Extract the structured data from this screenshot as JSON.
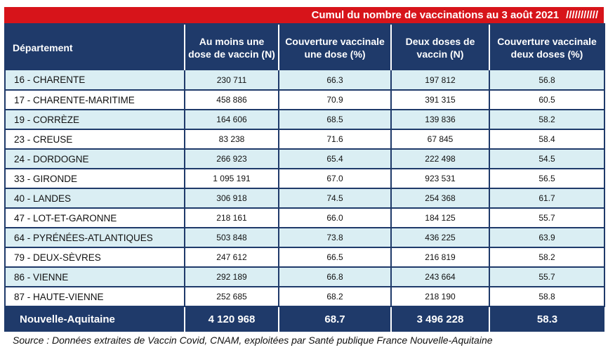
{
  "title": "Cumul du nombre de vaccinations au 3 août 2021",
  "title_decoration": "///////////",
  "table": {
    "headers": [
      "Département",
      "Au moins une dose de vaccin (N)",
      "Couverture vaccinale une dose (%)",
      "Deux doses de vaccin (N)",
      "Couverture vaccinale deux doses (%)"
    ],
    "rows": [
      [
        "16 - CHARENTE",
        "230 711",
        "66.3",
        "197 812",
        "56.8"
      ],
      [
        "17 - CHARENTE-MARITIME",
        "458 886",
        "70.9",
        "391 315",
        "60.5"
      ],
      [
        "19 - CORRÈZE",
        "164 606",
        "68.5",
        "139 836",
        "58.2"
      ],
      [
        "23 - CREUSE",
        "83 238",
        "71.6",
        "67 845",
        "58.4"
      ],
      [
        "24 - DORDOGNE",
        "266 923",
        "65.4",
        "222 498",
        "54.5"
      ],
      [
        "33 - GIRONDE",
        "1 095 191",
        "67.0",
        "923 531",
        "56.5"
      ],
      [
        "40 - LANDES",
        "306 918",
        "74.5",
        "254 368",
        "61.7"
      ],
      [
        "47 - LOT-ET-GARONNE",
        "218 161",
        "66.0",
        "184 125",
        "55.7"
      ],
      [
        "64 - PYRÉNÉES-ATLANTIQUES",
        "503 848",
        "73.8",
        "436 225",
        "63.9"
      ],
      [
        "79 - DEUX-SÈVRES",
        "247 612",
        "66.5",
        "216 819",
        "58.2"
      ],
      [
        "86 - VIENNE",
        "292 189",
        "66.8",
        "243 664",
        "55.7"
      ],
      [
        "87 - HAUTE-VIENNE",
        "252 685",
        "68.2",
        "218 190",
        "58.8"
      ]
    ],
    "total": [
      "Nouvelle-Aquitaine",
      "4 120 968",
      "68.7",
      "3 496 228",
      "58.3"
    ]
  },
  "source": "Source : Données extraites de Vaccin Covid, CNAM, exploitées par Santé publique France Nouvelle-Aquitaine",
  "colors": {
    "title_bar": "#d7141a",
    "header_bg": "#1f3a6a",
    "row_alt": "#daeef3",
    "row_plain": "#ffffff"
  }
}
